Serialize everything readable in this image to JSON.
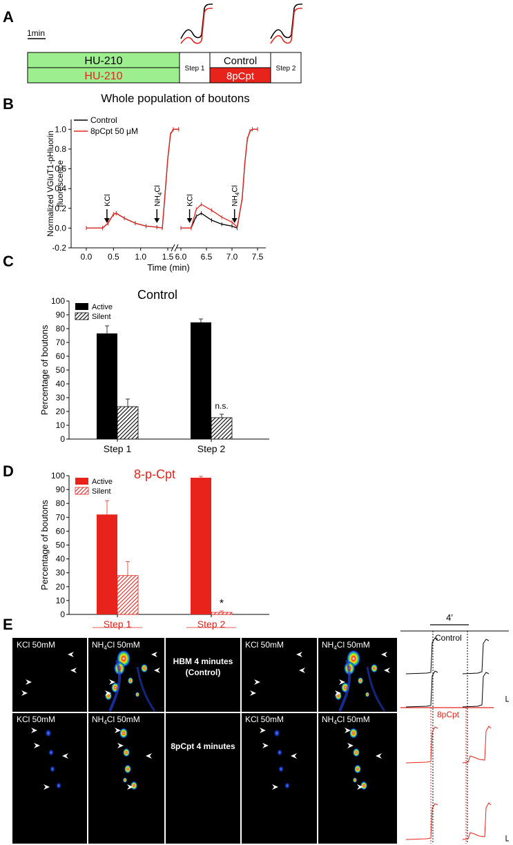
{
  "panel_letters": {
    "a": "A",
    "b": "B",
    "c": "C",
    "d": "D",
    "e": "E"
  },
  "colors": {
    "control": "#000000",
    "treatment": "#e8231c",
    "green": "#9dee8e",
    "red_box": "#e8231c"
  },
  "panelA": {
    "scale_label": "1min",
    "row1_label": "HU-210",
    "row2_label": "HU-210",
    "step1_label": "Step 1",
    "control_label": "Control",
    "drug_label": "8pCpt",
    "step2_label": "Step 2"
  },
  "panelB": {
    "title": "Whole population of boutons",
    "ylabel_line1": "Normalized VGluT1-pHluorin",
    "ylabel_line2": "fluorescence",
    "xlabel": "Time (min)",
    "legend": [
      "Control",
      "8pCpt 50 μM"
    ],
    "yticks": [
      "-0.2",
      "0.0",
      "0.2",
      "0.4",
      "0.6",
      "0.8",
      "1.0"
    ],
    "xticks_left": [
      "0.0",
      "0.5",
      "1.0",
      "1.5"
    ],
    "xticks_right": [
      "6.0",
      "6.5",
      "7.0",
      "7.5"
    ],
    "arrow_labels": [
      "KCl",
      "NH4Cl",
      "KCl",
      "NH4Cl"
    ]
  },
  "panelC": {
    "title": "Control",
    "ylabel": "Percentage of boutons",
    "legend": [
      "Active",
      "Silent"
    ],
    "annotation": "n.s."
  },
  "panelD": {
    "title": "8-p-Cpt",
    "ylabel": "Percentage of boutons",
    "legend": [
      "Active",
      "Silent"
    ],
    "annotation": "*"
  },
  "panelE": {
    "scale_label": "4′",
    "kcl": "KCl 50mM",
    "nh4cl_prefix": "NH",
    "nh4cl_sub": "4",
    "nh4cl_suffix": "Cl 50mM",
    "mid_top_line1": "HBM 4 minutes",
    "mid_top_line2": "(Control)",
    "mid_bottom": "8pCpt 4 minutes",
    "trace_label_control": "Control",
    "trace_label_drug": "8pCpt"
  },
  "chart_data": [
    {
      "type": "line",
      "title": "Whole population of boutons",
      "xlabel": "Time (min)",
      "ylabel": "Normalized VGluT1-pHluorin fluorescence",
      "ylim": [
        -0.2,
        1.1
      ],
      "series": [
        {
          "name": "Control",
          "x": [
            0.0,
            0.3,
            0.4,
            0.5,
            0.55,
            0.7,
            0.9,
            1.1,
            1.3,
            1.4,
            1.45,
            1.5,
            1.55,
            1.6,
            1.7,
            6.0,
            6.2,
            6.3,
            6.4,
            6.6,
            6.8,
            7.0,
            7.1,
            7.2,
            7.25,
            7.3,
            7.35,
            7.4,
            7.5
          ],
          "y": [
            0.0,
            0.0,
            0.05,
            0.14,
            0.15,
            0.1,
            0.05,
            0.02,
            0.01,
            0.0,
            0.35,
            0.7,
            0.95,
            1.0,
            1.0,
            0.0,
            0.0,
            0.12,
            0.15,
            0.08,
            0.04,
            0.02,
            0.0,
            0.3,
            0.65,
            0.9,
            0.98,
            1.0,
            1.0
          ]
        },
        {
          "name": "8pCpt 50 μM",
          "x": [
            0.0,
            0.3,
            0.4,
            0.5,
            0.55,
            0.7,
            0.9,
            1.1,
            1.3,
            1.4,
            1.45,
            1.5,
            1.55,
            1.6,
            1.7,
            6.0,
            6.2,
            6.3,
            6.4,
            6.6,
            6.8,
            7.0,
            7.1,
            7.2,
            7.25,
            7.3,
            7.35,
            7.4,
            7.5
          ],
          "y": [
            0.0,
            0.0,
            0.05,
            0.14,
            0.15,
            0.1,
            0.05,
            0.02,
            0.01,
            0.0,
            0.35,
            0.7,
            0.95,
            1.0,
            1.0,
            0.0,
            0.0,
            0.19,
            0.24,
            0.18,
            0.11,
            0.06,
            0.01,
            0.3,
            0.65,
            0.9,
            0.98,
            1.0,
            1.0
          ]
        }
      ],
      "legend_position": "top-left"
    },
    {
      "type": "bar",
      "title": "Control",
      "ylabel": "Percentage of boutons",
      "categories": [
        "Step 1",
        "Step 2"
      ],
      "ylim": [
        0,
        100
      ],
      "series": [
        {
          "name": "Active",
          "values": [
            76.5,
            84.5
          ],
          "errors": [
            5.5,
            2.5
          ]
        },
        {
          "name": "Silent",
          "values": [
            23.5,
            15.5
          ],
          "errors": [
            5.5,
            2.5
          ]
        }
      ]
    },
    {
      "type": "bar",
      "title": "8-p-Cpt",
      "ylabel": "Percentage of boutons",
      "categories": [
        "Step 1",
        "Step 2"
      ],
      "ylim": [
        0,
        100
      ],
      "series": [
        {
          "name": "Active",
          "values": [
            72,
            98.5
          ],
          "errors": [
            10,
            1
          ]
        },
        {
          "name": "Silent",
          "values": [
            28,
            1.5
          ],
          "errors": [
            10,
            1
          ]
        }
      ]
    }
  ]
}
